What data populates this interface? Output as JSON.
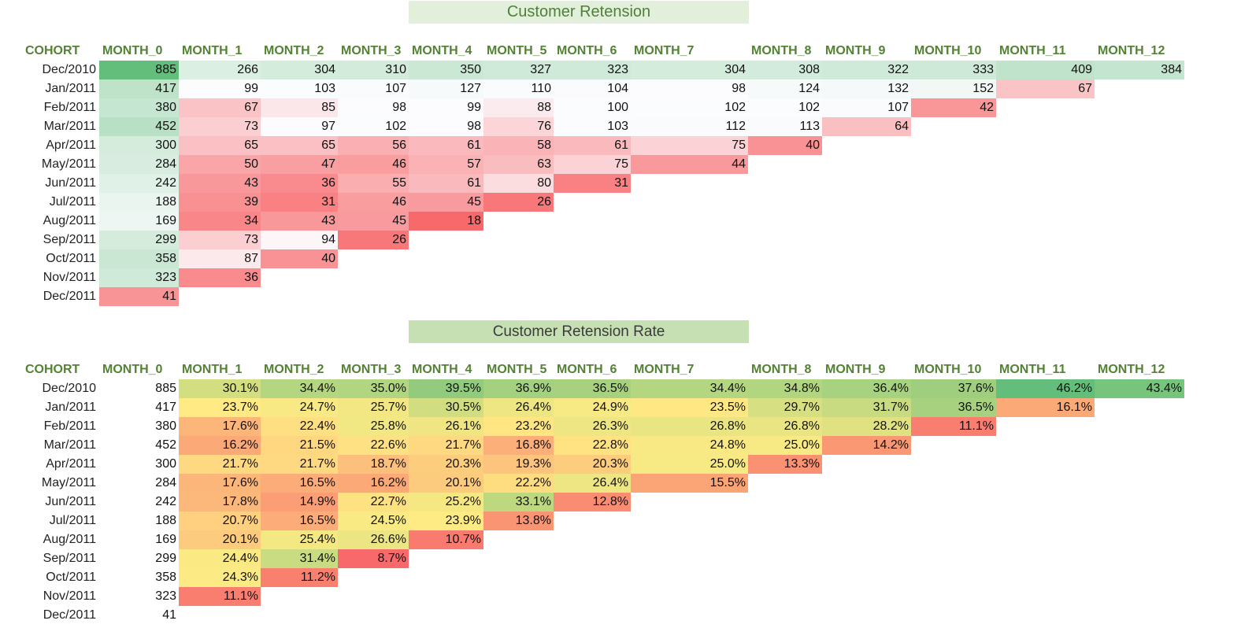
{
  "chart_data": [
    {
      "type": "heatmap",
      "title": "Customer Retension",
      "header_label": "COHORT",
      "columns": [
        "MONTH_0",
        "MONTH_1",
        "MONTH_2",
        "MONTH_3",
        "MONTH_4",
        "MONTH_5",
        "MONTH_6",
        "MONTH_7",
        "MONTH_8",
        "MONTH_9",
        "MONTH_10",
        "MONTH_11",
        "MONTH_12"
      ],
      "rows": [
        "Dec/2010",
        "Jan/2011",
        "Feb/2011",
        "Mar/2011",
        "Apr/2011",
        "May/2011",
        "Jun/2011",
        "Jul/2011",
        "Aug/2011",
        "Sep/2011",
        "Oct/2011",
        "Nov/2011",
        "Dec/2011"
      ],
      "values": [
        [
          885,
          266,
          304,
          310,
          350,
          327,
          323,
          304,
          308,
          322,
          333,
          409,
          384
        ],
        [
          417,
          99,
          103,
          107,
          127,
          110,
          104,
          98,
          124,
          132,
          152,
          67
        ],
        [
          380,
          67,
          85,
          98,
          99,
          88,
          100,
          102,
          102,
          107,
          42
        ],
        [
          452,
          73,
          97,
          102,
          98,
          76,
          103,
          112,
          113,
          64
        ],
        [
          300,
          65,
          65,
          56,
          61,
          58,
          61,
          75,
          40
        ],
        [
          284,
          50,
          47,
          46,
          57,
          63,
          75,
          44
        ],
        [
          242,
          43,
          36,
          55,
          61,
          80,
          31
        ],
        [
          188,
          39,
          31,
          46,
          45,
          26
        ],
        [
          169,
          34,
          43,
          45,
          18
        ],
        [
          299,
          73,
          94,
          26
        ],
        [
          358,
          87,
          40
        ],
        [
          323,
          36
        ],
        [
          41
        ]
      ],
      "color_scale": {
        "low": "#f8696b",
        "mid": "#fcfcff",
        "high": "#63be7b"
      }
    },
    {
      "type": "heatmap",
      "title": "Customer Retension Rate",
      "header_label": "COHORT",
      "columns": [
        "MONTH_0",
        "MONTH_1",
        "MONTH_2",
        "MONTH_3",
        "MONTH_4",
        "MONTH_5",
        "MONTH_6",
        "MONTH_7",
        "MONTH_8",
        "MONTH_9",
        "MONTH_10",
        "MONTH_11",
        "MONTH_12"
      ],
      "rows": [
        "Dec/2010",
        "Jan/2011",
        "Feb/2011",
        "Mar/2011",
        "Apr/2011",
        "May/2011",
        "Jun/2011",
        "Jul/2011",
        "Aug/2011",
        "Sep/2011",
        "Oct/2011",
        "Nov/2011",
        "Dec/2011"
      ],
      "month0": [
        885,
        417,
        380,
        452,
        300,
        284,
        242,
        188,
        169,
        299,
        358,
        323,
        41
      ],
      "values": [
        [
          "30.1%",
          "34.4%",
          "35.0%",
          "39.5%",
          "36.9%",
          "36.5%",
          "34.4%",
          "34.8%",
          "36.4%",
          "37.6%",
          "46.2%",
          "43.4%"
        ],
        [
          "23.7%",
          "24.7%",
          "25.7%",
          "30.5%",
          "26.4%",
          "24.9%",
          "23.5%",
          "29.7%",
          "31.7%",
          "36.5%",
          "16.1%"
        ],
        [
          "17.6%",
          "22.4%",
          "25.8%",
          "26.1%",
          "23.2%",
          "26.3%",
          "26.8%",
          "26.8%",
          "28.2%",
          "11.1%"
        ],
        [
          "16.2%",
          "21.5%",
          "22.6%",
          "21.7%",
          "16.8%",
          "22.8%",
          "24.8%",
          "25.0%",
          "14.2%"
        ],
        [
          "21.7%",
          "21.7%",
          "18.7%",
          "20.3%",
          "19.3%",
          "20.3%",
          "25.0%",
          "13.3%"
        ],
        [
          "17.6%",
          "16.5%",
          "16.2%",
          "20.1%",
          "22.2%",
          "26.4%",
          "15.5%"
        ],
        [
          "17.8%",
          "14.9%",
          "22.7%",
          "25.2%",
          "33.1%",
          "12.8%"
        ],
        [
          "20.7%",
          "16.5%",
          "24.5%",
          "23.9%",
          "13.8%"
        ],
        [
          "20.1%",
          "25.4%",
          "26.6%",
          "10.7%"
        ],
        [
          "24.4%",
          "31.4%",
          "8.7%"
        ],
        [
          "24.3%",
          "11.2%"
        ],
        [
          "11.1%"
        ],
        []
      ],
      "color_scale": {
        "low": "#f8696b",
        "mid": "#ffeb84",
        "high": "#63be7b"
      }
    }
  ]
}
